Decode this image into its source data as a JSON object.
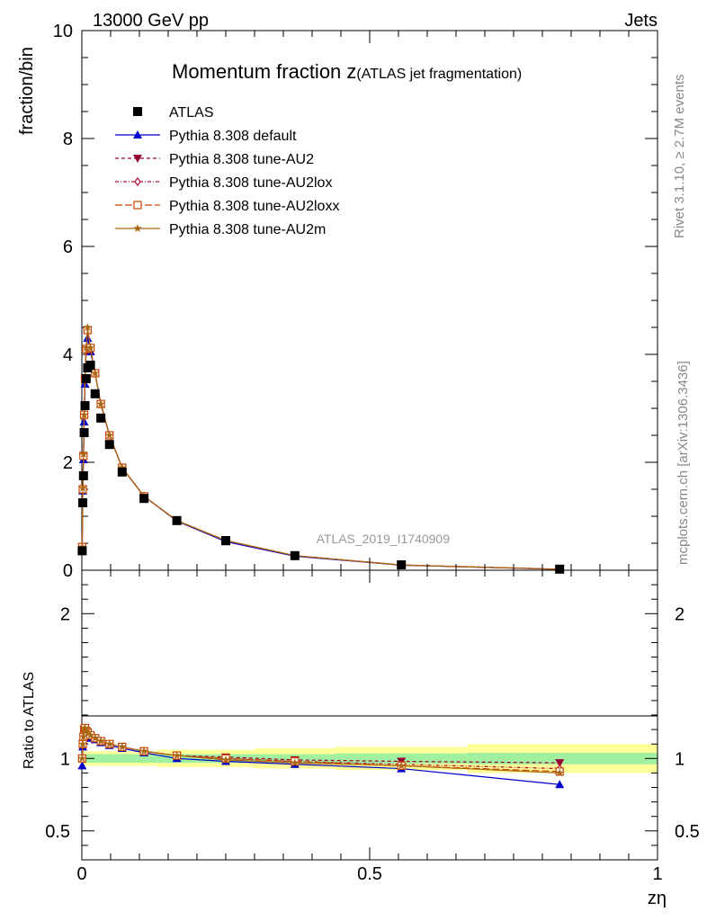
{
  "header": {
    "left": "13000 GeV pp",
    "right": "Jets"
  },
  "side": {
    "rivet": "Rivet 3.1.10, ≥ 2.7M events",
    "mcplots": "mcplots.cern.ch [arXiv:1306.3436]"
  },
  "colors": {
    "atlas": "#000000",
    "default": "#0000cc",
    "au2": "#990033",
    "au2lox": "#aa1133",
    "au2loxx": "#cc4400",
    "au2m": "#aa6611",
    "band_inner": "#a0f0a0",
    "band_outer": "#ffff99"
  },
  "chart_data": {
    "type": "line",
    "title_main": "Momentum fraction ",
    "title_var": "z",
    "title_sub": "(ATLAS jet fragmentation)",
    "ylabel": "fraction/bin",
    "xlabel": "zη",
    "ratio_ylabel": "Ratio to ATLAS",
    "watermark": "ATLAS_2019_I1740909",
    "xlim": [
      0,
      1
    ],
    "ylim": [
      0,
      10
    ],
    "ratio_ylim": [
      0.3,
      2.3
    ],
    "x_ticks": [
      "0",
      "0.5",
      "1"
    ],
    "y_ticks": [
      "0",
      "2",
      "4",
      "6",
      "8",
      "10"
    ],
    "ratio_ticks": [
      "0.5",
      "1",
      "2"
    ],
    "x": [
      0.0006,
      0.0016,
      0.0028,
      0.004,
      0.0055,
      0.0075,
      0.01,
      0.015,
      0.023,
      0.033,
      0.048,
      0.07,
      0.108,
      0.165,
      0.25,
      0.37,
      0.555,
      0.83
    ],
    "series": [
      {
        "name": "ATLAS",
        "values": [
          0.36,
          1.25,
          1.75,
          2.55,
          3.05,
          3.55,
          3.75,
          3.8,
          3.27,
          2.82,
          2.33,
          1.82,
          1.33,
          0.92,
          0.55,
          0.27,
          0.1,
          0.02
        ]
      },
      {
        "name": "Pythia 8.308 default",
        "values": [
          0.42,
          1.47,
          2.05,
          2.75,
          3.45,
          4.1,
          4.3,
          4.05,
          3.65,
          3.08,
          2.5,
          1.9,
          1.37,
          0.91,
          0.53,
          0.26,
          0.093,
          0.016
        ]
      },
      {
        "name": "Pythia 8.308 tune-AU2",
        "values": [
          0.43,
          1.5,
          2.1,
          2.85,
          3.5,
          4.05,
          4.45,
          4.1,
          3.65,
          3.08,
          2.5,
          1.9,
          1.37,
          0.92,
          0.55,
          0.27,
          0.098,
          0.019
        ]
      },
      {
        "name": "Pythia 8.308 tune-AU2lox",
        "values": [
          0.43,
          1.5,
          2.12,
          2.85,
          3.52,
          4.1,
          4.45,
          4.1,
          3.65,
          3.08,
          2.5,
          1.9,
          1.37,
          0.92,
          0.55,
          0.27,
          0.097,
          0.018
        ]
      },
      {
        "name": "Pythia 8.308 tune-AU2loxx",
        "values": [
          0.43,
          1.5,
          2.12,
          2.88,
          3.55,
          4.1,
          4.45,
          4.12,
          3.65,
          3.08,
          2.5,
          1.9,
          1.37,
          0.92,
          0.55,
          0.27,
          0.096,
          0.018
        ]
      },
      {
        "name": "Pythia 8.308 tune-AU2m",
        "values": [
          0.43,
          1.52,
          2.15,
          2.88,
          3.55,
          4.12,
          4.5,
          4.12,
          3.65,
          3.08,
          2.5,
          1.9,
          1.37,
          0.92,
          0.55,
          0.27,
          0.096,
          0.018
        ]
      }
    ],
    "ratio": {
      "x": [
        0.0006,
        0.0016,
        0.0028,
        0.004,
        0.0055,
        0.0075,
        0.01,
        0.015,
        0.023,
        0.033,
        0.048,
        0.07,
        0.108,
        0.165,
        0.25,
        0.37,
        0.555,
        0.83
      ],
      "series": [
        {
          "name": "Pythia 8.308 default",
          "values": [
            0.95,
            1.08,
            1.12,
            1.18,
            1.19,
            1.17,
            1.16,
            1.14,
            1.13,
            1.11,
            1.09,
            1.07,
            1.04,
            1.0,
            0.98,
            0.96,
            0.93,
            0.82
          ]
        },
        {
          "name": "Pythia 8.308 tune-AU2",
          "values": [
            1.0,
            1.1,
            1.15,
            1.2,
            1.21,
            1.19,
            1.18,
            1.16,
            1.14,
            1.12,
            1.1,
            1.08,
            1.05,
            1.02,
            1.01,
            0.99,
            0.98,
            0.97
          ]
        },
        {
          "name": "Pythia 8.308 tune-AU2lox",
          "values": [
            1.0,
            1.1,
            1.15,
            1.2,
            1.21,
            1.19,
            1.18,
            1.16,
            1.14,
            1.12,
            1.1,
            1.08,
            1.05,
            1.02,
            1.0,
            0.98,
            0.96,
            0.93
          ]
        },
        {
          "name": "Pythia 8.308 tune-AU2loxx",
          "values": [
            1.0,
            1.1,
            1.15,
            1.2,
            1.21,
            1.19,
            1.18,
            1.16,
            1.14,
            1.12,
            1.1,
            1.08,
            1.05,
            1.02,
            1.0,
            0.98,
            0.95,
            0.91
          ]
        },
        {
          "name": "Pythia 8.308 tune-AU2m",
          "values": [
            1.0,
            1.1,
            1.15,
            1.2,
            1.21,
            1.19,
            1.18,
            1.16,
            1.14,
            1.12,
            1.1,
            1.08,
            1.05,
            1.02,
            0.99,
            0.97,
            0.95,
            0.9
          ]
        }
      ],
      "band_edges": [
        0,
        0.01,
        0.03,
        0.06,
        0.09,
        0.13,
        0.2,
        0.3,
        0.44,
        0.67,
        1.0
      ],
      "band_inner": [
        0.03,
        0.03,
        0.03,
        0.03,
        0.03,
        0.03,
        0.03,
        0.03,
        0.035,
        0.04
      ],
      "band_outer": [
        0.05,
        0.05,
        0.05,
        0.05,
        0.05,
        0.06,
        0.06,
        0.07,
        0.08,
        0.1
      ]
    }
  }
}
